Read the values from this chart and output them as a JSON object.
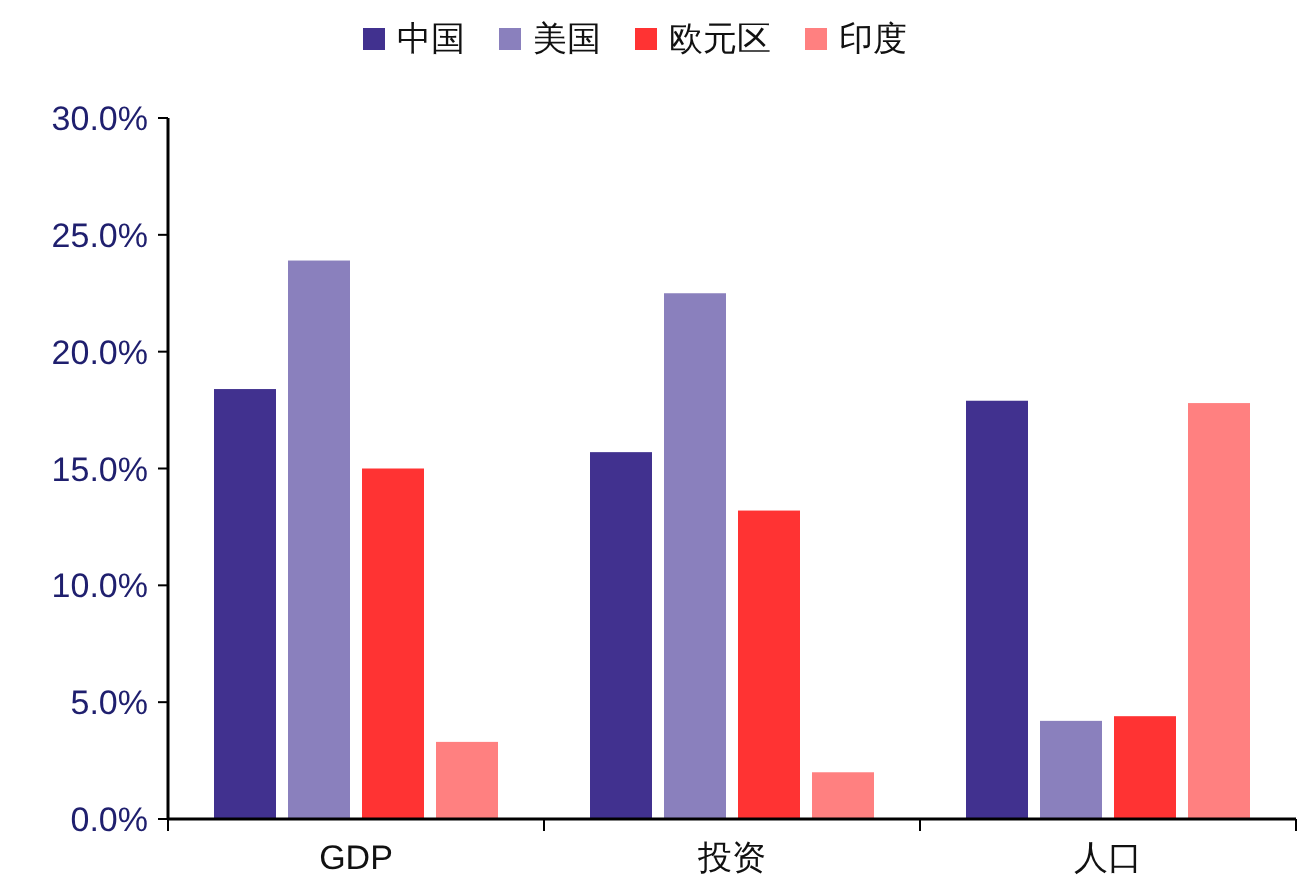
{
  "chart_data": {
    "type": "bar",
    "categories": [
      "GDP",
      "投资",
      "人口"
    ],
    "series": [
      {
        "name": "中国",
        "color": "#41318f",
        "values": [
          18.4,
          15.7,
          17.9
        ]
      },
      {
        "name": "美国",
        "color": "#8a80bd",
        "values": [
          23.9,
          22.5,
          4.2
        ]
      },
      {
        "name": "欧元区",
        "color": "#ff3333",
        "values": [
          15.0,
          13.2,
          4.4
        ]
      },
      {
        "name": "印度",
        "color": "#ff8080",
        "values": [
          3.3,
          2.0,
          17.8
        ]
      }
    ],
    "ylim": [
      0,
      30
    ],
    "yticks": [
      {
        "value": 0,
        "label": "0.0%"
      },
      {
        "value": 5,
        "label": "5.0%"
      },
      {
        "value": 10,
        "label": "10.0%"
      },
      {
        "value": 15,
        "label": "15.0%"
      },
      {
        "value": 20,
        "label": "20.0%"
      },
      {
        "value": 25,
        "label": "25.0%"
      },
      {
        "value": 30,
        "label": "30.0%"
      }
    ],
    "grid": false,
    "legend": "top"
  }
}
